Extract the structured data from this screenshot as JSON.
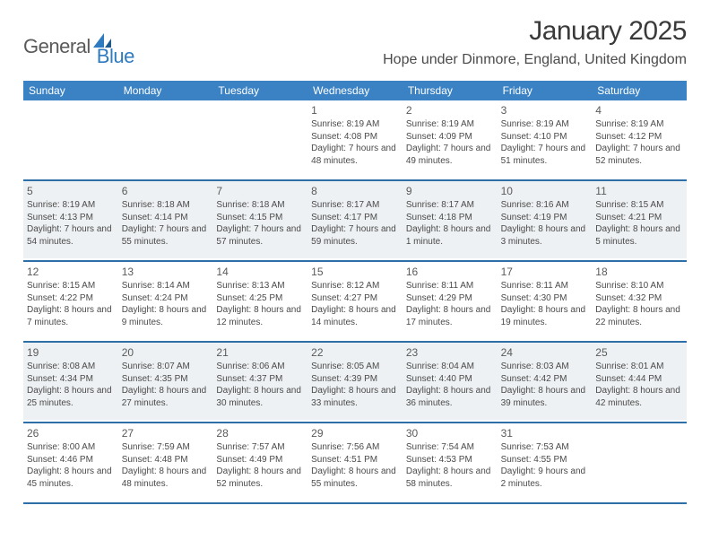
{
  "brand": {
    "part1": "General",
    "part2": "Blue",
    "accent": "#2f7bbf",
    "text_color": "#5a5a5a"
  },
  "title": "January 2025",
  "location": "Hope under Dinmore, England, United Kingdom",
  "colors": {
    "header_bg": "#3b82c4",
    "rule": "#2f6fa8",
    "shaded": "#eef1f3",
    "page_bg": "#ffffff"
  },
  "fonts": {
    "title_size": 30,
    "location_size": 16,
    "dow_size": 12,
    "daynum_size": 12,
    "body_size": 10
  },
  "days_of_week": [
    "Sunday",
    "Monday",
    "Tuesday",
    "Wednesday",
    "Thursday",
    "Friday",
    "Saturday"
  ],
  "weeks": [
    {
      "shaded": false,
      "cells": [
        {
          "n": "",
          "sunrise": "",
          "sunset": "",
          "daylight": ""
        },
        {
          "n": "",
          "sunrise": "",
          "sunset": "",
          "daylight": ""
        },
        {
          "n": "",
          "sunrise": "",
          "sunset": "",
          "daylight": ""
        },
        {
          "n": "1",
          "sunrise": "Sunrise: 8:19 AM",
          "sunset": "Sunset: 4:08 PM",
          "daylight": "Daylight: 7 hours and 48 minutes."
        },
        {
          "n": "2",
          "sunrise": "Sunrise: 8:19 AM",
          "sunset": "Sunset: 4:09 PM",
          "daylight": "Daylight: 7 hours and 49 minutes."
        },
        {
          "n": "3",
          "sunrise": "Sunrise: 8:19 AM",
          "sunset": "Sunset: 4:10 PM",
          "daylight": "Daylight: 7 hours and 51 minutes."
        },
        {
          "n": "4",
          "sunrise": "Sunrise: 8:19 AM",
          "sunset": "Sunset: 4:12 PM",
          "daylight": "Daylight: 7 hours and 52 minutes."
        }
      ]
    },
    {
      "shaded": true,
      "cells": [
        {
          "n": "5",
          "sunrise": "Sunrise: 8:19 AM",
          "sunset": "Sunset: 4:13 PM",
          "daylight": "Daylight: 7 hours and 54 minutes."
        },
        {
          "n": "6",
          "sunrise": "Sunrise: 8:18 AM",
          "sunset": "Sunset: 4:14 PM",
          "daylight": "Daylight: 7 hours and 55 minutes."
        },
        {
          "n": "7",
          "sunrise": "Sunrise: 8:18 AM",
          "sunset": "Sunset: 4:15 PM",
          "daylight": "Daylight: 7 hours and 57 minutes."
        },
        {
          "n": "8",
          "sunrise": "Sunrise: 8:17 AM",
          "sunset": "Sunset: 4:17 PM",
          "daylight": "Daylight: 7 hours and 59 minutes."
        },
        {
          "n": "9",
          "sunrise": "Sunrise: 8:17 AM",
          "sunset": "Sunset: 4:18 PM",
          "daylight": "Daylight: 8 hours and 1 minute."
        },
        {
          "n": "10",
          "sunrise": "Sunrise: 8:16 AM",
          "sunset": "Sunset: 4:19 PM",
          "daylight": "Daylight: 8 hours and 3 minutes."
        },
        {
          "n": "11",
          "sunrise": "Sunrise: 8:15 AM",
          "sunset": "Sunset: 4:21 PM",
          "daylight": "Daylight: 8 hours and 5 minutes."
        }
      ]
    },
    {
      "shaded": false,
      "cells": [
        {
          "n": "12",
          "sunrise": "Sunrise: 8:15 AM",
          "sunset": "Sunset: 4:22 PM",
          "daylight": "Daylight: 8 hours and 7 minutes."
        },
        {
          "n": "13",
          "sunrise": "Sunrise: 8:14 AM",
          "sunset": "Sunset: 4:24 PM",
          "daylight": "Daylight: 8 hours and 9 minutes."
        },
        {
          "n": "14",
          "sunrise": "Sunrise: 8:13 AM",
          "sunset": "Sunset: 4:25 PM",
          "daylight": "Daylight: 8 hours and 12 minutes."
        },
        {
          "n": "15",
          "sunrise": "Sunrise: 8:12 AM",
          "sunset": "Sunset: 4:27 PM",
          "daylight": "Daylight: 8 hours and 14 minutes."
        },
        {
          "n": "16",
          "sunrise": "Sunrise: 8:11 AM",
          "sunset": "Sunset: 4:29 PM",
          "daylight": "Daylight: 8 hours and 17 minutes."
        },
        {
          "n": "17",
          "sunrise": "Sunrise: 8:11 AM",
          "sunset": "Sunset: 4:30 PM",
          "daylight": "Daylight: 8 hours and 19 minutes."
        },
        {
          "n": "18",
          "sunrise": "Sunrise: 8:10 AM",
          "sunset": "Sunset: 4:32 PM",
          "daylight": "Daylight: 8 hours and 22 minutes."
        }
      ]
    },
    {
      "shaded": true,
      "cells": [
        {
          "n": "19",
          "sunrise": "Sunrise: 8:08 AM",
          "sunset": "Sunset: 4:34 PM",
          "daylight": "Daylight: 8 hours and 25 minutes."
        },
        {
          "n": "20",
          "sunrise": "Sunrise: 8:07 AM",
          "sunset": "Sunset: 4:35 PM",
          "daylight": "Daylight: 8 hours and 27 minutes."
        },
        {
          "n": "21",
          "sunrise": "Sunrise: 8:06 AM",
          "sunset": "Sunset: 4:37 PM",
          "daylight": "Daylight: 8 hours and 30 minutes."
        },
        {
          "n": "22",
          "sunrise": "Sunrise: 8:05 AM",
          "sunset": "Sunset: 4:39 PM",
          "daylight": "Daylight: 8 hours and 33 minutes."
        },
        {
          "n": "23",
          "sunrise": "Sunrise: 8:04 AM",
          "sunset": "Sunset: 4:40 PM",
          "daylight": "Daylight: 8 hours and 36 minutes."
        },
        {
          "n": "24",
          "sunrise": "Sunrise: 8:03 AM",
          "sunset": "Sunset: 4:42 PM",
          "daylight": "Daylight: 8 hours and 39 minutes."
        },
        {
          "n": "25",
          "sunrise": "Sunrise: 8:01 AM",
          "sunset": "Sunset: 4:44 PM",
          "daylight": "Daylight: 8 hours and 42 minutes."
        }
      ]
    },
    {
      "shaded": false,
      "cells": [
        {
          "n": "26",
          "sunrise": "Sunrise: 8:00 AM",
          "sunset": "Sunset: 4:46 PM",
          "daylight": "Daylight: 8 hours and 45 minutes."
        },
        {
          "n": "27",
          "sunrise": "Sunrise: 7:59 AM",
          "sunset": "Sunset: 4:48 PM",
          "daylight": "Daylight: 8 hours and 48 minutes."
        },
        {
          "n": "28",
          "sunrise": "Sunrise: 7:57 AM",
          "sunset": "Sunset: 4:49 PM",
          "daylight": "Daylight: 8 hours and 52 minutes."
        },
        {
          "n": "29",
          "sunrise": "Sunrise: 7:56 AM",
          "sunset": "Sunset: 4:51 PM",
          "daylight": "Daylight: 8 hours and 55 minutes."
        },
        {
          "n": "30",
          "sunrise": "Sunrise: 7:54 AM",
          "sunset": "Sunset: 4:53 PM",
          "daylight": "Daylight: 8 hours and 58 minutes."
        },
        {
          "n": "31",
          "sunrise": "Sunrise: 7:53 AM",
          "sunset": "Sunset: 4:55 PM",
          "daylight": "Daylight: 9 hours and 2 minutes."
        },
        {
          "n": "",
          "sunrise": "",
          "sunset": "",
          "daylight": ""
        }
      ]
    }
  ]
}
